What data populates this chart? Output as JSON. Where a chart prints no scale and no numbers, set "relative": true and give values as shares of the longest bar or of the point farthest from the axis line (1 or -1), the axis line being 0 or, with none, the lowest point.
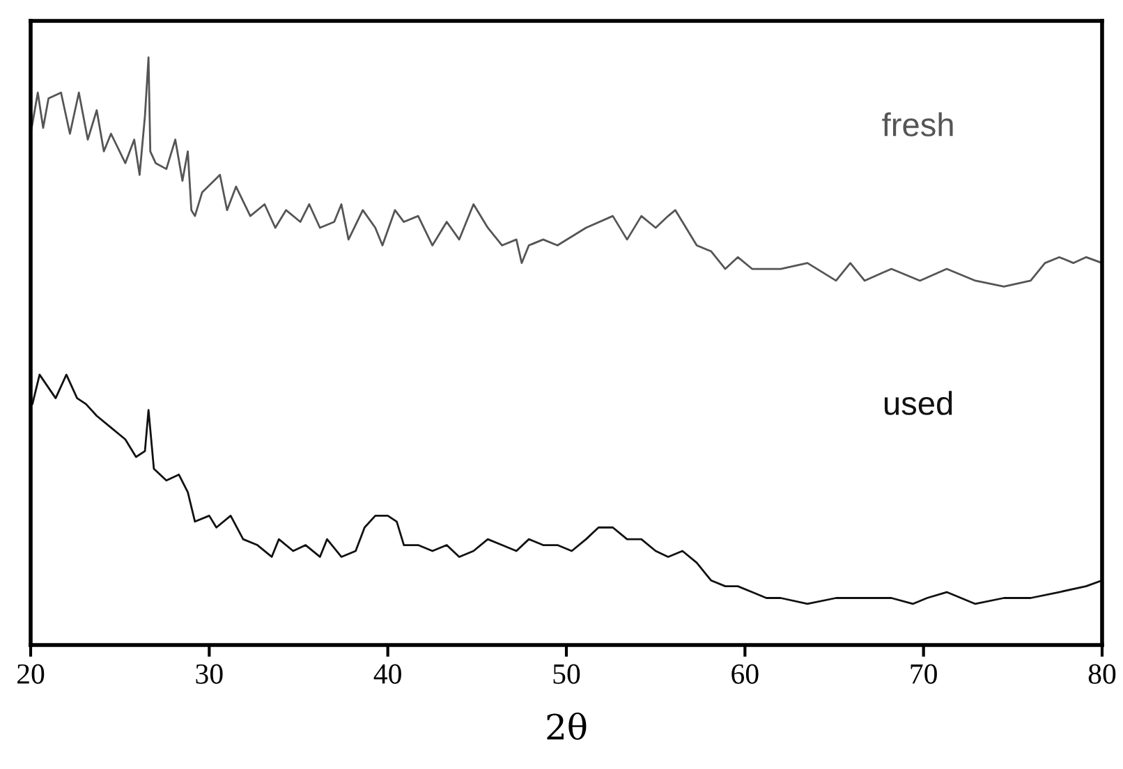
{
  "chart_data": {
    "type": "line",
    "xlabel": "2θ",
    "relative": true,
    "tick_labels": "x",
    "legend": false,
    "grid": false,
    "xlim": [
      20,
      80
    ],
    "xticks": [
      20,
      30,
      40,
      50,
      60,
      70,
      80
    ],
    "series": [
      {
        "name": "fresh",
        "color": "#555555",
        "x": [
          20.0,
          20.4,
          20.7,
          21.0,
          21.7,
          22.2,
          22.7,
          23.2,
          23.7,
          24.1,
          24.5,
          25.3,
          25.8,
          26.1,
          26.4,
          26.6,
          26.7,
          27.0,
          27.6,
          28.1,
          28.5,
          28.8,
          29.0,
          29.2,
          29.6,
          30.6,
          31.0,
          31.5,
          32.3,
          33.1,
          33.7,
          34.3,
          35.1,
          35.6,
          36.2,
          37.0,
          37.4,
          37.8,
          38.6,
          39.3,
          39.7,
          40.4,
          40.9,
          41.7,
          42.5,
          43.3,
          44.0,
          44.8,
          45.6,
          46.4,
          47.2,
          47.5,
          47.9,
          48.7,
          49.5,
          51.1,
          52.6,
          53.4,
          54.2,
          55.0,
          55.7,
          56.1,
          56.5,
          57.3,
          58.1,
          58.9,
          59.6,
          60.4,
          62.0,
          63.5,
          65.1,
          65.9,
          66.7,
          68.2,
          69.8,
          71.3,
          72.9,
          74.5,
          76.0,
          76.8,
          77.6,
          78.4,
          79.1,
          80.0
        ],
        "values": [
          0.87,
          0.94,
          0.88,
          0.93,
          0.94,
          0.87,
          0.94,
          0.86,
          0.91,
          0.84,
          0.87,
          0.82,
          0.86,
          0.8,
          0.9,
          1.0,
          0.84,
          0.82,
          0.81,
          0.86,
          0.79,
          0.84,
          0.74,
          0.73,
          0.77,
          0.8,
          0.74,
          0.78,
          0.73,
          0.75,
          0.71,
          0.74,
          0.72,
          0.75,
          0.71,
          0.72,
          0.75,
          0.69,
          0.74,
          0.71,
          0.68,
          0.74,
          0.72,
          0.73,
          0.68,
          0.72,
          0.69,
          0.75,
          0.71,
          0.68,
          0.69,
          0.65,
          0.68,
          0.69,
          0.68,
          0.71,
          0.73,
          0.69,
          0.73,
          0.71,
          0.73,
          0.74,
          0.72,
          0.68,
          0.67,
          0.64,
          0.66,
          0.64,
          0.64,
          0.65,
          0.62,
          0.65,
          0.62,
          0.64,
          0.62,
          0.64,
          0.62,
          0.61,
          0.62,
          0.65,
          0.66,
          0.65,
          0.66,
          0.65
        ]
      },
      {
        "name": "used",
        "color": "#111111",
        "x": [
          20.1,
          20.5,
          21.4,
          22.0,
          22.6,
          23.1,
          23.7,
          24.5,
          25.3,
          25.9,
          26.4,
          26.6,
          26.9,
          27.6,
          28.3,
          28.8,
          29.2,
          30.0,
          30.4,
          31.2,
          31.9,
          32.7,
          33.5,
          33.9,
          34.7,
          35.4,
          36.2,
          36.6,
          37.4,
          38.2,
          38.7,
          39.3,
          40.0,
          40.5,
          40.9,
          41.7,
          42.5,
          43.3,
          44.0,
          44.8,
          45.6,
          46.4,
          47.2,
          47.9,
          48.7,
          49.5,
          50.3,
          51.1,
          51.8,
          52.6,
          53.4,
          54.2,
          55.0,
          55.7,
          56.5,
          57.3,
          58.1,
          58.9,
          59.6,
          60.4,
          61.2,
          62.0,
          63.5,
          65.1,
          66.7,
          68.2,
          69.4,
          70.2,
          71.3,
          72.9,
          74.5,
          76.0,
          77.6,
          79.1,
          80.0
        ],
        "values": [
          0.41,
          0.46,
          0.42,
          0.46,
          0.42,
          0.41,
          0.39,
          0.37,
          0.35,
          0.32,
          0.33,
          0.4,
          0.3,
          0.28,
          0.29,
          0.26,
          0.21,
          0.22,
          0.2,
          0.22,
          0.18,
          0.17,
          0.15,
          0.18,
          0.16,
          0.17,
          0.15,
          0.18,
          0.15,
          0.16,
          0.2,
          0.22,
          0.22,
          0.21,
          0.17,
          0.17,
          0.16,
          0.17,
          0.15,
          0.16,
          0.18,
          0.17,
          0.16,
          0.18,
          0.17,
          0.17,
          0.16,
          0.18,
          0.2,
          0.2,
          0.18,
          0.18,
          0.16,
          0.15,
          0.16,
          0.14,
          0.11,
          0.1,
          0.1,
          0.09,
          0.08,
          0.08,
          0.07,
          0.08,
          0.08,
          0.08,
          0.07,
          0.08,
          0.09,
          0.07,
          0.08,
          0.08,
          0.09,
          0.1,
          0.11
        ]
      }
    ]
  }
}
